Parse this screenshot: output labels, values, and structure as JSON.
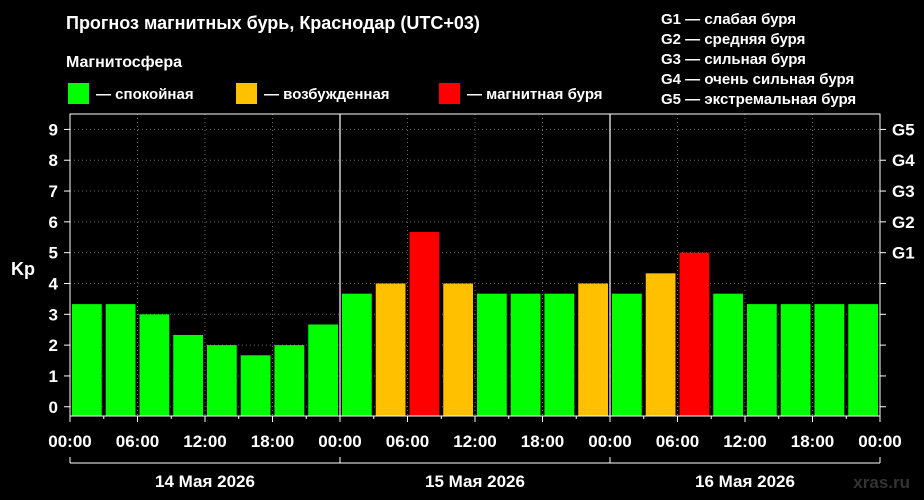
{
  "title": "Прогноз магнитных бурь, Краснодар (UTC+03)",
  "legend_title": "Магнитосфера",
  "legend": [
    {
      "label": "— спокойная",
      "color": "#00ff00"
    },
    {
      "label": "— возбужденная",
      "color": "#ffc000"
    },
    {
      "label": "— магнитная буря",
      "color": "#ff0000"
    }
  ],
  "g_legend": [
    "G1 — слабая буря",
    "G2 — средняя буря",
    "G3 — сильная буря",
    "G4 — очень сильная буря",
    "G5 — экстремальная буря"
  ],
  "watermark": "xras.ru",
  "chart_data": {
    "type": "bar",
    "ylabel": "Kp",
    "ylim": [
      -0.3,
      9.5
    ],
    "y_ticks": [
      "0",
      "1",
      "2",
      "3",
      "4",
      "5",
      "6",
      "7",
      "8",
      "9"
    ],
    "g_ticks": [
      {
        "label": "G1",
        "kp": 5
      },
      {
        "label": "G2",
        "kp": 6
      },
      {
        "label": "G3",
        "kp": 7
      },
      {
        "label": "G4",
        "kp": 8
      },
      {
        "label": "G5",
        "kp": 9
      }
    ],
    "x_tick_labels": [
      "00:00",
      "06:00",
      "12:00",
      "18:00",
      "00:00",
      "06:00",
      "12:00",
      "18:00",
      "00:00",
      "06:00",
      "12:00",
      "18:00",
      "00:00"
    ],
    "days": [
      "14 Мая 2026",
      "15 Мая 2026",
      "16 Мая 2026"
    ],
    "grid": true,
    "values": [
      3.33,
      3.33,
      3.0,
      2.33,
      2.0,
      1.67,
      2.0,
      2.67,
      3.67,
      4.0,
      5.67,
      4.0,
      3.67,
      3.67,
      3.67,
      4.0,
      3.67,
      4.33,
      5.0,
      3.67,
      3.33,
      3.33,
      3.33,
      3.33
    ],
    "colors": [
      "#00ff00",
      "#00ff00",
      "#00ff00",
      "#00ff00",
      "#00ff00",
      "#00ff00",
      "#00ff00",
      "#00ff00",
      "#00ff00",
      "#ffc000",
      "#ff0000",
      "#ffc000",
      "#00ff00",
      "#00ff00",
      "#00ff00",
      "#ffc000",
      "#00ff00",
      "#ffc000",
      "#ff0000",
      "#00ff00",
      "#00ff00",
      "#00ff00",
      "#00ff00",
      "#00ff00"
    ]
  }
}
